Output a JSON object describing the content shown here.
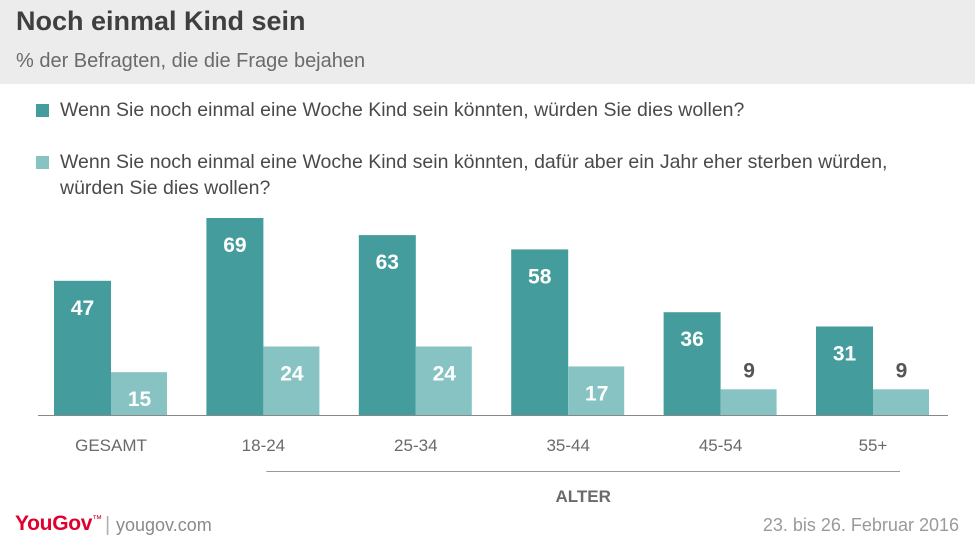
{
  "header": {
    "title": "Noch einmal Kind sein",
    "subtitle": "% der Befragten, die die Frage bejahen"
  },
  "footer": {
    "logo": "YouGov",
    "separator": "|",
    "site": "yougov.com",
    "date": "23. bis 26. Februar 2016"
  },
  "colors": {
    "series1": "#449c9c",
    "series2": "#88c3c3",
    "label_dark": "#ffffff",
    "label_light": "#ffffff",
    "label_outside": "#555555"
  },
  "chart_data": {
    "type": "bar",
    "title": "Noch einmal Kind sein",
    "ylabel": "% der Befragten, die die Frage bejahen",
    "xlabel": "ALTER",
    "categories": [
      "GESAMT",
      "18-24",
      "25-34",
      "35-44",
      "45-54",
      "55+"
    ],
    "series": [
      {
        "name": "Wenn Sie noch einmal eine Woche Kind sein könnten, würden Sie dies wollen?",
        "values": [
          47,
          69,
          63,
          58,
          36,
          31
        ]
      },
      {
        "name": "Wenn Sie noch einmal eine Woche Kind sein könnten, dafür aber ein Jahr eher sterben würden, würden Sie dies wollen?",
        "values": [
          15,
          24,
          24,
          17,
          9,
          9
        ]
      }
    ],
    "ylim": [
      0,
      69
    ],
    "grid": false,
    "legend": "top-left",
    "group_label": "ALTER"
  }
}
